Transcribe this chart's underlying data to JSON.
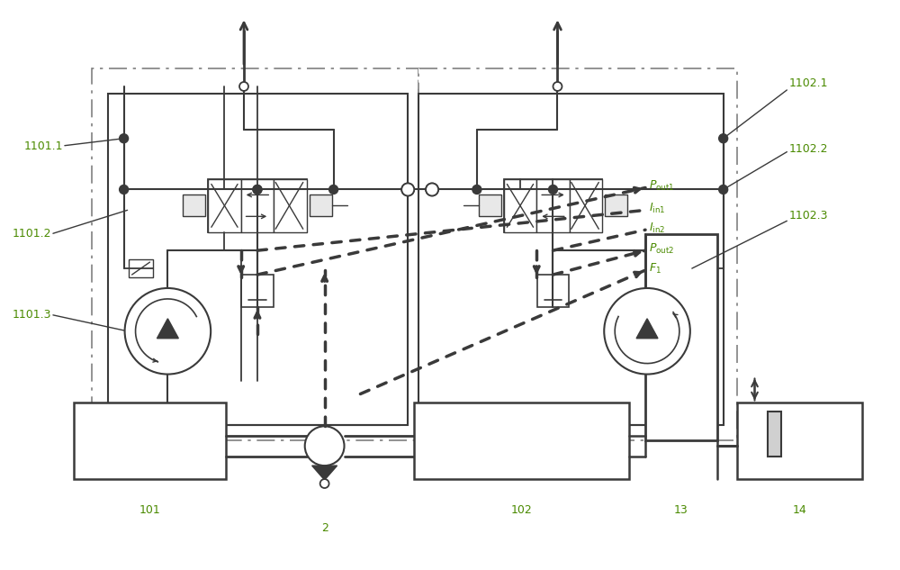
{
  "bg_color": "#ffffff",
  "lc": "#3a3a3a",
  "gc": "#4a8a00",
  "figsize": [
    10.0,
    6.33
  ],
  "dpi": 100,
  "labels": {
    "1101_1": "1101.1",
    "1101_2": "1101.2",
    "1101_3": "1101.3",
    "1102_1": "1102.1",
    "1102_2": "1102.2",
    "1102_3": "1102.3",
    "101": "101",
    "2": "2",
    "102": "102",
    "13": "13",
    "14": "14"
  }
}
